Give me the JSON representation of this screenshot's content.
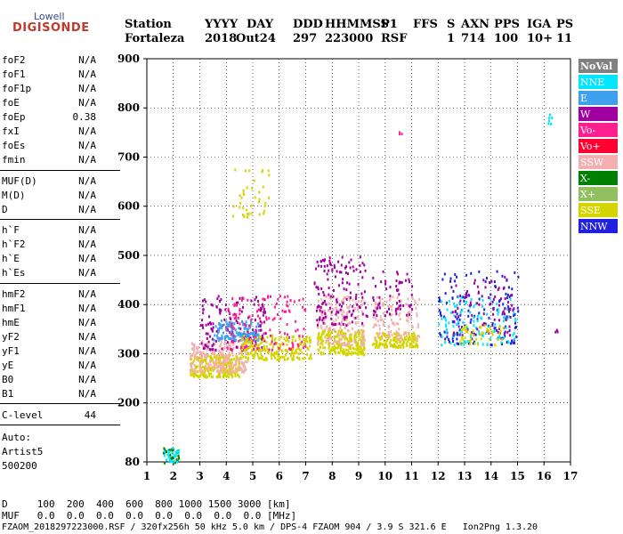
{
  "logo": {
    "line1": "Lowell",
    "line2": "DIGISONDE"
  },
  "header": {
    "labels": [
      "Station",
      "YYYY",
      "DAY",
      "DDD",
      "HHMMSS",
      "P1",
      "FFS",
      "S",
      "AXN",
      "PPS",
      "IGA",
      "PS"
    ],
    "values": [
      "Fortaleza",
      "2018",
      "Out24",
      "297",
      "223000",
      "RSF",
      "1",
      "714",
      "100",
      "10+",
      "11"
    ]
  },
  "params": {
    "group1": [
      {
        "name": "foF2",
        "value": "N/A"
      },
      {
        "name": "foF1",
        "value": "N/A"
      },
      {
        "name": "foF1p",
        "value": "N/A"
      },
      {
        "name": "foE",
        "value": "N/A"
      },
      {
        "name": "foEp",
        "value": "0.38"
      },
      {
        "name": "fxI",
        "value": "N/A"
      },
      {
        "name": "foEs",
        "value": "N/A"
      },
      {
        "name": "fmin",
        "value": "N/A"
      }
    ],
    "group2": [
      {
        "name": "MUF(D)",
        "value": "N/A"
      },
      {
        "name": "M(D)",
        "value": "N/A"
      },
      {
        "name": "D",
        "value": "N/A"
      }
    ],
    "group3": [
      {
        "name": "h`F",
        "value": "N/A"
      },
      {
        "name": "h`F2",
        "value": "N/A"
      },
      {
        "name": "h`E",
        "value": "N/A"
      },
      {
        "name": "h`Es",
        "value": "N/A"
      }
    ],
    "group4": [
      {
        "name": "hmF2",
        "value": "N/A"
      },
      {
        "name": "hmF1",
        "value": "N/A"
      },
      {
        "name": "hmE",
        "value": "N/A"
      },
      {
        "name": "yF2",
        "value": "N/A"
      },
      {
        "name": "yF1",
        "value": "N/A"
      },
      {
        "name": "yE",
        "value": "N/A"
      },
      {
        "name": "B0",
        "value": "N/A"
      },
      {
        "name": "B1",
        "value": "N/A"
      }
    ],
    "clevel": {
      "name": "C-level",
      "value": "44"
    },
    "auto": [
      "Auto:",
      "Artist5",
      "500200"
    ]
  },
  "footer": {
    "d_row": "D     100  200  400  600  800 1000 1500 3000 [km]",
    "muf_row": "MUF   0.0  0.0  0.0  0.0  0.0  0.0  0.0  0.0 [MHz]",
    "info": "FZAOM_2018297223000.RSF / 320fx256h 50 kHz 5.0 km / DPS-4 FZAOM 904 / 3.9 S 321.6 E   Ion2Png 1.3.20"
  },
  "chart_data": {
    "type": "scatter",
    "x_ticks": [
      1,
      2,
      3,
      4,
      5,
      6,
      7,
      8,
      9,
      10,
      11,
      12,
      13,
      14,
      15,
      16,
      17
    ],
    "y_ticks": [
      80,
      200,
      300,
      400,
      500,
      600,
      700,
      800,
      900
    ],
    "xlim": [
      1,
      17
    ],
    "ylim": [
      80,
      900
    ],
    "grid": true,
    "legend_position": "right",
    "legend": [
      {
        "name": "NoVal",
        "color": "#808080"
      },
      {
        "name": "NNE",
        "color": "#00e6ff"
      },
      {
        "name": "E",
        "color": "#3fa0f0"
      },
      {
        "name": "W",
        "color": "#a000a0"
      },
      {
        "name": "Vo-",
        "color": "#ff1f8f"
      },
      {
        "name": "Vo+",
        "color": "#ff0030"
      },
      {
        "name": "SSW",
        "color": "#f4b0b0"
      },
      {
        "name": "X-",
        "color": "#008000"
      },
      {
        "name": "X+",
        "color": "#90c060"
      },
      {
        "name": "SSE",
        "color": "#d4d400"
      },
      {
        "name": "NNW",
        "color": "#2020e0"
      }
    ],
    "clusters": [
      {
        "series": "SSE",
        "x": [
          2.6,
          4.5
        ],
        "y": [
          255,
          300
        ],
        "n": 260
      },
      {
        "series": "SSW",
        "x": [
          2.6,
          4.8
        ],
        "y": [
          265,
          330
        ],
        "n": 240
      },
      {
        "series": "W",
        "x": [
          3.0,
          5.5
        ],
        "y": [
          310,
          420
        ],
        "n": 160
      },
      {
        "series": "E",
        "x": [
          3.5,
          5.2
        ],
        "y": [
          330,
          370
        ],
        "n": 140
      },
      {
        "series": "SSE",
        "x": [
          4.5,
          7.2
        ],
        "y": [
          290,
          340
        ],
        "n": 220
      },
      {
        "series": "Vo-",
        "x": [
          4.0,
          7.0
        ],
        "y": [
          310,
          420
        ],
        "n": 120
      },
      {
        "series": "SSE",
        "x": [
          7.4,
          9.2
        ],
        "y": [
          300,
          350
        ],
        "n": 220
      },
      {
        "series": "SSW",
        "x": [
          7.4,
          9.2
        ],
        "y": [
          320,
          420
        ],
        "n": 160
      },
      {
        "series": "W",
        "x": [
          7.3,
          9.3
        ],
        "y": [
          360,
          500
        ],
        "n": 140
      },
      {
        "series": "SSE",
        "x": [
          9.5,
          11.2
        ],
        "y": [
          315,
          345
        ],
        "n": 160
      },
      {
        "series": "SSW",
        "x": [
          9.5,
          11.3
        ],
        "y": [
          330,
          420
        ],
        "n": 110
      },
      {
        "series": "W",
        "x": [
          9.5,
          11.0
        ],
        "y": [
          380,
          470
        ],
        "n": 60
      },
      {
        "series": "NNW",
        "x": [
          12.0,
          15.0
        ],
        "y": [
          320,
          470
        ],
        "n": 150
      },
      {
        "series": "NNE",
        "x": [
          12.0,
          15.0
        ],
        "y": [
          320,
          420
        ],
        "n": 110
      },
      {
        "series": "W",
        "x": [
          12.5,
          14.8
        ],
        "y": [
          340,
          460
        ],
        "n": 80
      },
      {
        "series": "SSE",
        "x": [
          12.8,
          14.5
        ],
        "y": [
          320,
          360
        ],
        "n": 50
      },
      {
        "series": "SSE",
        "x": [
          4.2,
          5.6
        ],
        "y": [
          580,
          680
        ],
        "n": 40
      },
      {
        "series": "X-",
        "x": [
          1.6,
          2.2
        ],
        "y": [
          80,
          110
        ],
        "n": 30
      },
      {
        "series": "NNE",
        "x": [
          1.6,
          2.2
        ],
        "y": [
          82,
          112
        ],
        "n": 25
      },
      {
        "series": "NNE",
        "x": [
          16.1,
          16.3
        ],
        "y": [
          770,
          790
        ],
        "n": 6
      },
      {
        "series": "W",
        "x": [
          16.4,
          16.5
        ],
        "y": [
          345,
          355
        ],
        "n": 4
      },
      {
        "series": "Vo-",
        "x": [
          10.5,
          10.6
        ],
        "y": [
          748,
          755
        ],
        "n": 3
      }
    ]
  }
}
